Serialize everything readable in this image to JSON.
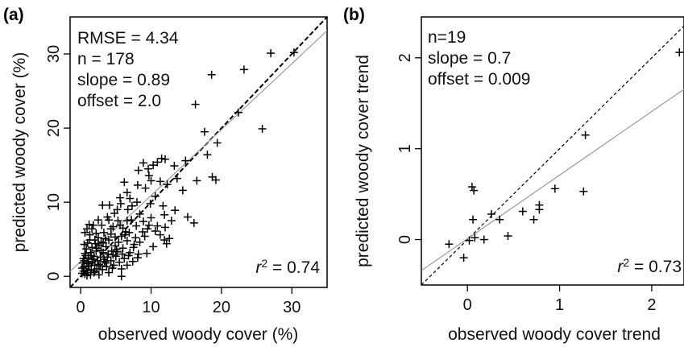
{
  "chart_data": [
    {
      "type": "scatter",
      "panel_label": "(a)",
      "xlabel": "observed woody cover (%)",
      "ylabel": "predicted woody cover (%)",
      "xlim": [
        -1.5,
        35
      ],
      "ylim": [
        -1.5,
        35
      ],
      "xticks": [
        0,
        10,
        20,
        30
      ],
      "yticks": [
        0,
        10,
        20,
        30
      ],
      "stats": [
        "RMSE = 4.34",
        "n = 178",
        "slope = 0.89",
        "offset = 2.0"
      ],
      "r2_prefix": "r",
      "r2_sup": "2",
      "r2_value": " = 0.74",
      "one_to_one_line": {
        "style": "dashed",
        "slope": 1,
        "offset": 0
      },
      "regression_line": {
        "style": "solid-gray",
        "slope": 0.89,
        "offset": 2.0
      },
      "points": [
        [
          30.3,
          30.2
        ],
        [
          27.0,
          30.1
        ],
        [
          23.2,
          27.9
        ],
        [
          18.6,
          27.2
        ],
        [
          16.3,
          23.2
        ],
        [
          22.4,
          22.1
        ],
        [
          25.8,
          19.9
        ],
        [
          17.6,
          19.5
        ],
        [
          19.4,
          18.0
        ],
        [
          18.0,
          16.4
        ],
        [
          14.9,
          15.6
        ],
        [
          13.3,
          14.9
        ],
        [
          10.9,
          15.4
        ],
        [
          11.5,
          15.9
        ],
        [
          12.0,
          15.8
        ],
        [
          10.3,
          15.0
        ],
        [
          8.9,
          15.3
        ],
        [
          8.2,
          14.3
        ],
        [
          9.6,
          14.5
        ],
        [
          18.7,
          13.4
        ],
        [
          19.2,
          13.0
        ],
        [
          16.5,
          12.9
        ],
        [
          13.7,
          13.2
        ],
        [
          11.3,
          12.8
        ],
        [
          12.3,
          12.4
        ],
        [
          10.0,
          12.9
        ],
        [
          9.7,
          13.6
        ],
        [
          8.1,
          12.3
        ],
        [
          6.2,
          12.7
        ],
        [
          14.5,
          11.6
        ],
        [
          9.2,
          11.9
        ],
        [
          6.6,
          11.3
        ],
        [
          10.6,
          10.8
        ],
        [
          7.0,
          10.5
        ],
        [
          5.6,
          10.6
        ],
        [
          4.1,
          9.6
        ],
        [
          3.1,
          9.6
        ],
        [
          5.7,
          9.8
        ],
        [
          9.9,
          9.8
        ],
        [
          11.7,
          9.5
        ],
        [
          13.4,
          8.9
        ],
        [
          11.9,
          8.3
        ],
        [
          15.2,
          8.0
        ],
        [
          16.1,
          7.2
        ],
        [
          12.9,
          7.5
        ],
        [
          10.0,
          7.9
        ],
        [
          8.4,
          8.4
        ],
        [
          8.9,
          7.4
        ],
        [
          7.2,
          7.6
        ],
        [
          6.6,
          7.5
        ],
        [
          5.3,
          7.5
        ],
        [
          4.0,
          7.6
        ],
        [
          2.5,
          7.6
        ],
        [
          10.9,
          6.8
        ],
        [
          12.0,
          6.6
        ],
        [
          9.5,
          6.4
        ],
        [
          6.0,
          6.5
        ],
        [
          4.6,
          6.7
        ],
        [
          3.0,
          6.9
        ],
        [
          1.6,
          6.4
        ],
        [
          0.9,
          6.4
        ],
        [
          11.3,
          5.6
        ],
        [
          9.1,
          5.4
        ],
        [
          6.3,
          5.6
        ],
        [
          5.8,
          5.4
        ],
        [
          4.3,
          5.7
        ],
        [
          3.3,
          5.9
        ],
        [
          2.2,
          5.8
        ],
        [
          1.3,
          5.6
        ],
        [
          0.6,
          5.9
        ],
        [
          12.2,
          4.4
        ],
        [
          8.4,
          4.6
        ],
        [
          6.6,
          4.8
        ],
        [
          5.4,
          4.6
        ],
        [
          4.0,
          4.9
        ],
        [
          2.9,
          4.6
        ],
        [
          2.0,
          4.9
        ],
        [
          1.0,
          4.5
        ],
        [
          0.5,
          4.3
        ],
        [
          10.3,
          4.0
        ],
        [
          7.5,
          3.9
        ],
        [
          6.0,
          3.8
        ],
        [
          4.9,
          4.1
        ],
        [
          3.6,
          4.0
        ],
        [
          2.6,
          4.2
        ],
        [
          1.6,
          3.9
        ],
        [
          0.8,
          3.7
        ],
        [
          9.4,
          3.1
        ],
        [
          7.0,
          3.2
        ],
        [
          5.2,
          3.3
        ],
        [
          4.4,
          3.4
        ],
        [
          3.2,
          3.2
        ],
        [
          2.2,
          3.4
        ],
        [
          1.4,
          3.2
        ],
        [
          0.6,
          3.1
        ],
        [
          8.1,
          2.5
        ],
        [
          6.2,
          2.4
        ],
        [
          5.0,
          2.7
        ],
        [
          3.8,
          2.6
        ],
        [
          2.8,
          2.6
        ],
        [
          1.9,
          2.7
        ],
        [
          1.1,
          2.5
        ],
        [
          0.4,
          2.4
        ],
        [
          7.4,
          2.0
        ],
        [
          5.5,
          1.9
        ],
        [
          4.3,
          2.1
        ],
        [
          3.4,
          2.0
        ],
        [
          2.4,
          2.1
        ],
        [
          1.6,
          1.9
        ],
        [
          0.9,
          2.0
        ],
        [
          0.3,
          1.8
        ],
        [
          6.6,
          1.5
        ],
        [
          4.7,
          1.5
        ],
        [
          3.7,
          1.3
        ],
        [
          2.8,
          1.4
        ],
        [
          2.0,
          1.5
        ],
        [
          1.2,
          1.4
        ],
        [
          0.5,
          1.3
        ],
        [
          0.2,
          1.1
        ],
        [
          5.8,
          1.0
        ],
        [
          3.1,
          0.9
        ],
        [
          2.3,
          1.0
        ],
        [
          1.5,
          0.9
        ],
        [
          0.8,
          0.8
        ],
        [
          0.4,
          0.7
        ],
        [
          4.0,
          0.5
        ],
        [
          1.9,
          0.5
        ],
        [
          1.0,
          0.5
        ],
        [
          0.6,
          0.3
        ],
        [
          0.2,
          0.4
        ],
        [
          1.4,
          0.2
        ],
        [
          0.9,
          0.1
        ],
        [
          2.6,
          0.2
        ],
        [
          5.8,
          0.0
        ],
        [
          6.4,
          6.0
        ],
        [
          7.8,
          5.2
        ],
        [
          8.8,
          6.0
        ],
        [
          3.5,
          5.1
        ],
        [
          2.5,
          5.2
        ],
        [
          1.8,
          6.9
        ],
        [
          1.2,
          7.0
        ],
        [
          4.8,
          8.5
        ],
        [
          5.2,
          9.0
        ],
        [
          3.8,
          8.0
        ],
        [
          2.3,
          3.8
        ],
        [
          3.9,
          3.0
        ],
        [
          4.6,
          2.9
        ],
        [
          5.9,
          3.0
        ],
        [
          1.7,
          2.3
        ],
        [
          2.6,
          1.6
        ],
        [
          3.3,
          2.3
        ],
        [
          4.9,
          5.3
        ],
        [
          6.9,
          5.9
        ],
        [
          7.9,
          6.8
        ],
        [
          9.7,
          6.9
        ],
        [
          10.6,
          6.1
        ],
        [
          12.6,
          5.1
        ],
        [
          11.9,
          4.9
        ],
        [
          8.2,
          3.0
        ],
        [
          6.8,
          2.8
        ],
        [
          7.6,
          4.3
        ],
        [
          5.1,
          3.6
        ],
        [
          2.1,
          4.4
        ],
        [
          1.3,
          4.9
        ],
        [
          0.7,
          2.8
        ],
        [
          1.5,
          2.8
        ],
        [
          2.9,
          3.5
        ],
        [
          3.6,
          1.8
        ],
        [
          4.5,
          1.1
        ],
        [
          2.0,
          0.7
        ],
        [
          1.1,
          1.7
        ],
        [
          0.5,
          2.1
        ],
        [
          3.2,
          4.5
        ],
        [
          4.3,
          6.4
        ],
        [
          5.6,
          6.9
        ],
        [
          6.7,
          9.0
        ],
        [
          8.0,
          10.0
        ],
        [
          7.3,
          9.5
        ]
      ]
    },
    {
      "type": "scatter",
      "panel_label": "(b)",
      "xlabel": "observed woody cover trend",
      "ylabel": "predicted woody cover trend",
      "xlim": [
        -0.5,
        2.35
      ],
      "ylim": [
        -0.5,
        2.45
      ],
      "xticks": [
        0,
        1,
        2
      ],
      "yticks": [
        0,
        1,
        2
      ],
      "stats": [
        "n=19",
        "slope = 0.7",
        "offset = 0.009"
      ],
      "r2_prefix": "r",
      "r2_sup": "2",
      "r2_value": " = 0.73",
      "one_to_one_line": {
        "style": "dashed",
        "slope": 1,
        "offset": 0
      },
      "regression_line": {
        "style": "solid-gray",
        "slope": 0.7,
        "offset": 0.009
      },
      "points": [
        [
          2.3,
          2.06
        ],
        [
          1.28,
          1.15
        ],
        [
          0.95,
          0.56
        ],
        [
          1.26,
          0.53
        ],
        [
          0.05,
          0.58
        ],
        [
          0.07,
          0.54
        ],
        [
          0.78,
          0.38
        ],
        [
          0.78,
          0.33
        ],
        [
          0.6,
          0.31
        ],
        [
          0.72,
          0.22
        ],
        [
          0.26,
          0.28
        ],
        [
          0.35,
          0.22
        ],
        [
          0.06,
          0.22
        ],
        [
          0.44,
          0.04
        ],
        [
          0.08,
          0.02
        ],
        [
          0.18,
          0.0
        ],
        [
          0.02,
          -0.01
        ],
        [
          -0.2,
          -0.05
        ],
        [
          -0.04,
          -0.2
        ]
      ]
    }
  ]
}
